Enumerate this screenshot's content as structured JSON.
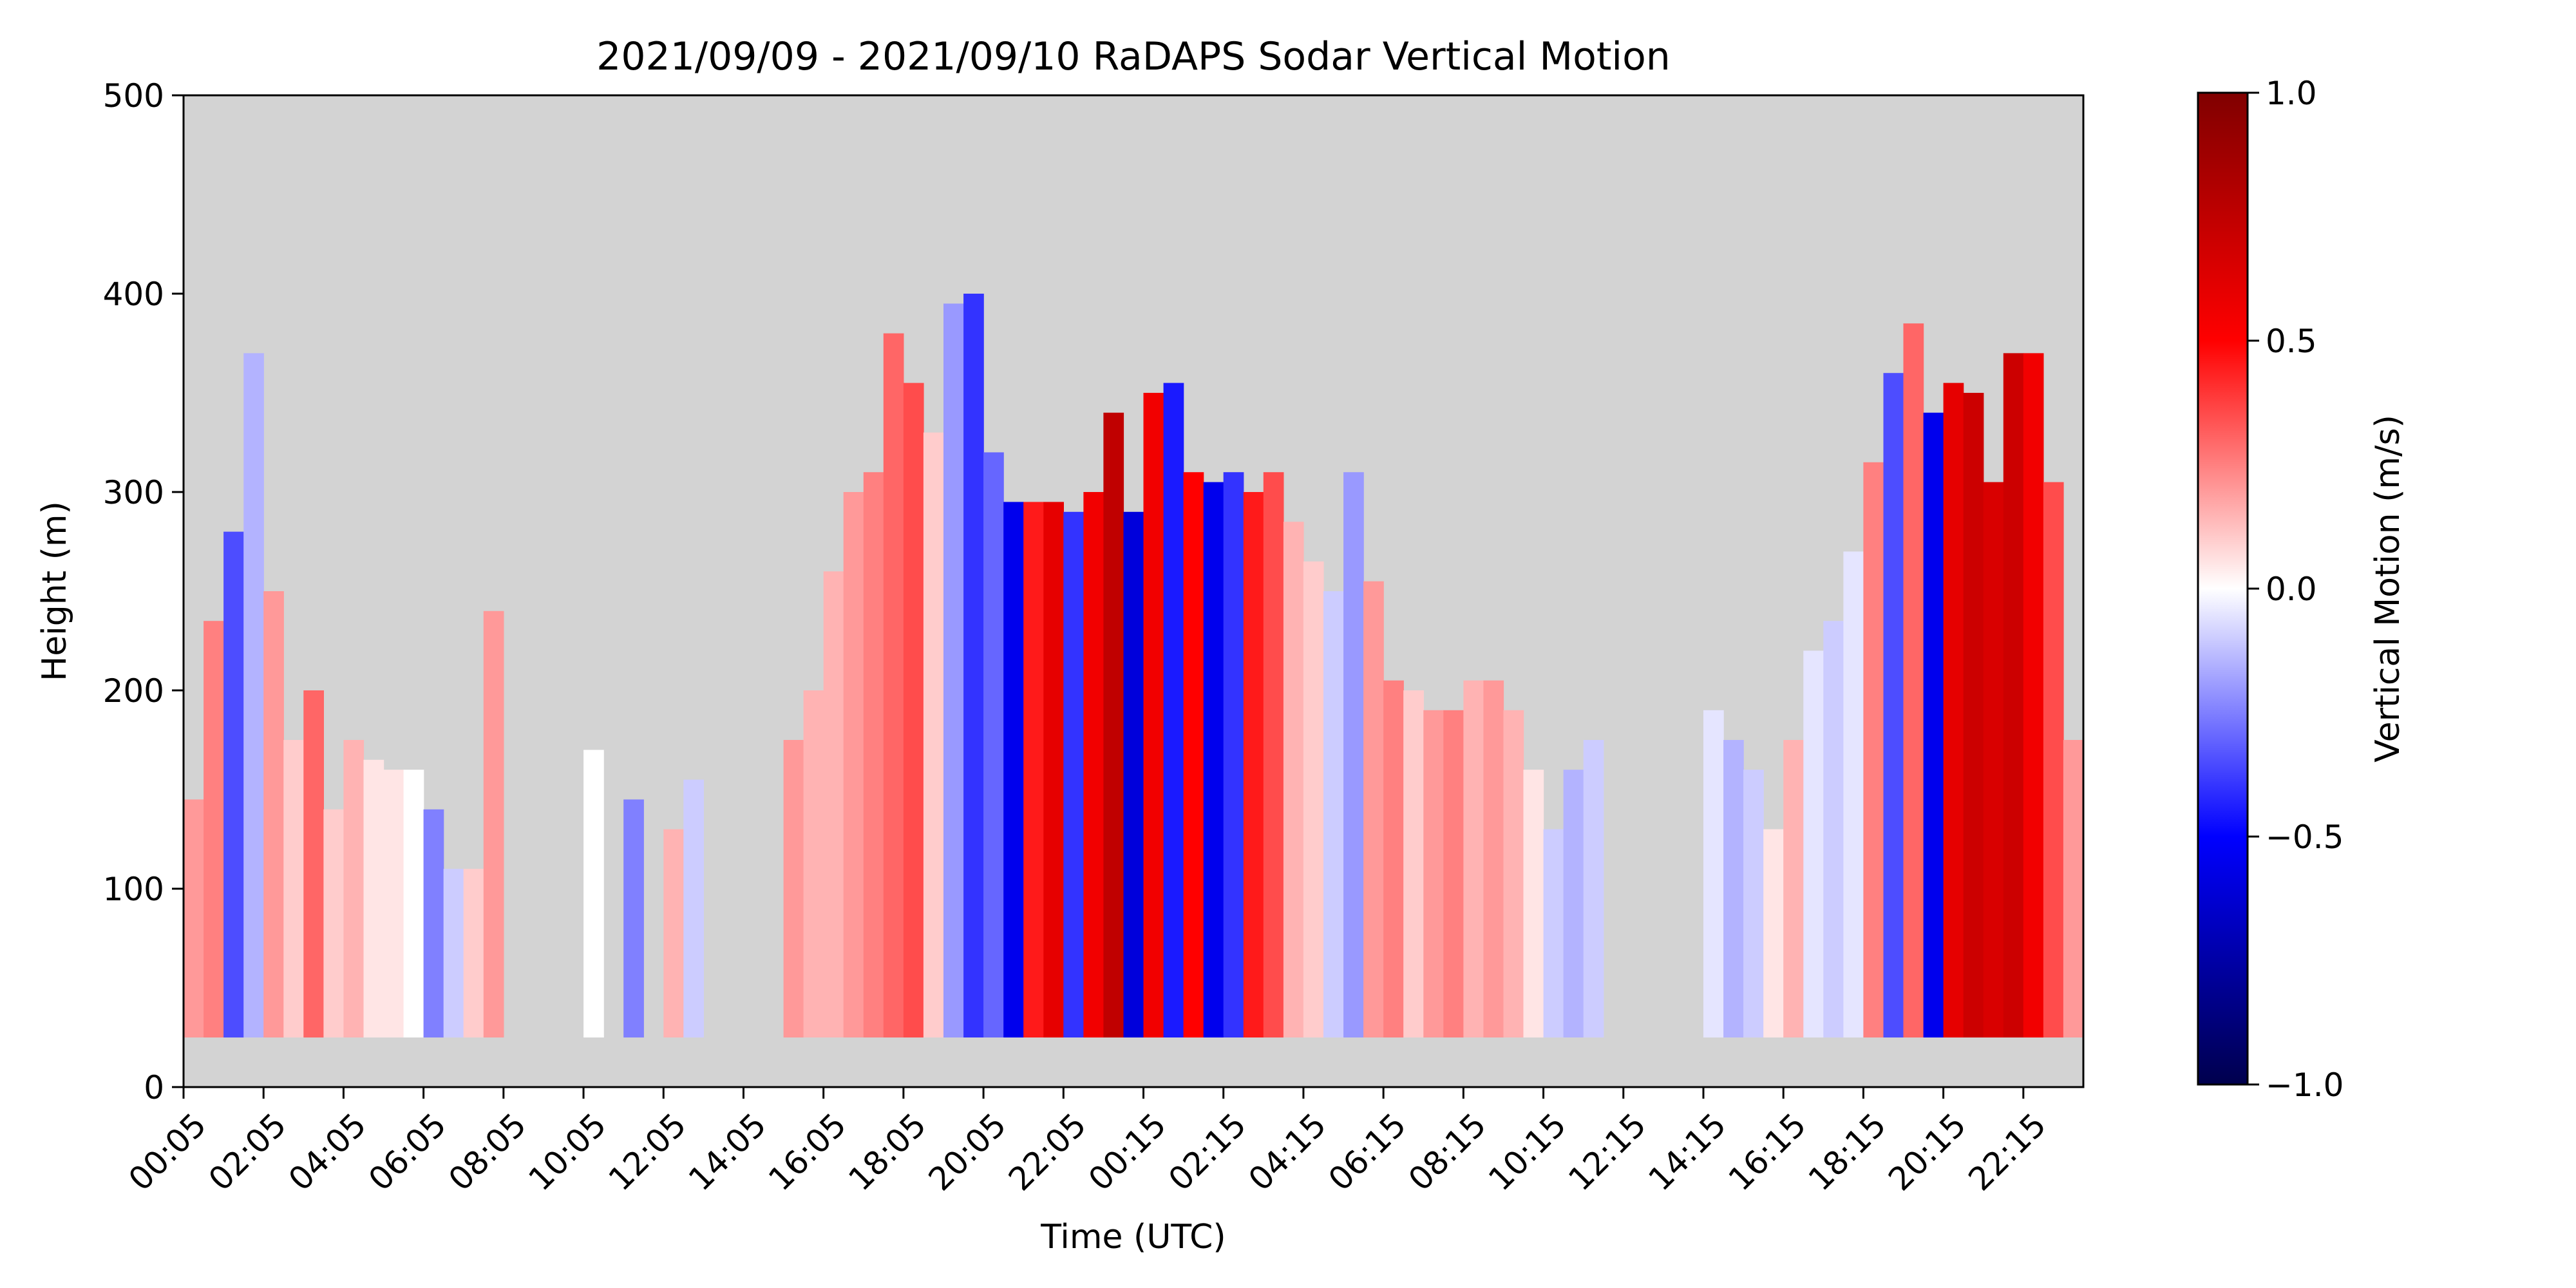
{
  "chart_data": {
    "type": "heatmap",
    "title": "2021/09/09 - 2021/09/10 RaDAPS Sodar Vertical Motion",
    "xlabel": "Time (UTC)",
    "ylabel": "Height (m)",
    "x_tick_labels": [
      "00:05",
      "02:05",
      "04:05",
      "06:05",
      "08:05",
      "10:05",
      "12:05",
      "14:05",
      "16:05",
      "18:05",
      "20:05",
      "22:05",
      "00:15",
      "02:15",
      "04:15",
      "06:15",
      "08:15",
      "10:15",
      "12:15",
      "14:15",
      "16:15",
      "18:15",
      "20:15",
      "22:15"
    ],
    "x_tick_step_hours": 2,
    "x_range_hours": [
      0,
      47.5
    ],
    "y_ticks": [
      0,
      100,
      200,
      300,
      400,
      500
    ],
    "ylim": [
      0,
      500
    ],
    "missing_color": "#d3d3d3",
    "min_height": 25,
    "colorbar": {
      "label": "Vertical Motion (m/s)",
      "ticks": [
        1.0,
        0.5,
        0.0,
        -0.5,
        -1.0
      ],
      "tick_labels": [
        "1.0",
        "0.5",
        "0.0",
        "−0.5",
        "−1.0"
      ],
      "range": [
        -1.0,
        1.0
      ],
      "colormap": "seismic",
      "colors": [
        "#00004d",
        "#0000ff",
        "#ffffff",
        "#ff0000",
        "#800000"
      ]
    },
    "data_columns": [
      {
        "t": 0.0,
        "top": 145,
        "v": 0.2
      },
      {
        "t": 0.5,
        "top": 235,
        "v": 0.25
      },
      {
        "t": 1.0,
        "top": 280,
        "v": -0.35
      },
      {
        "t": 1.5,
        "top": 370,
        "v": -0.15
      },
      {
        "t": 2.0,
        "top": 250,
        "v": 0.2
      },
      {
        "t": 2.5,
        "top": 175,
        "v": 0.1
      },
      {
        "t": 3.0,
        "top": 200,
        "v": 0.3
      },
      {
        "t": 3.5,
        "top": 140,
        "v": 0.1
      },
      {
        "t": 4.0,
        "top": 175,
        "v": 0.15
      },
      {
        "t": 4.5,
        "top": 165,
        "v": 0.05
      },
      {
        "t": 5.0,
        "top": 160,
        "v": 0.05
      },
      {
        "t": 5.5,
        "top": 160,
        "v": 0.0
      },
      {
        "t": 6.0,
        "top": 140,
        "v": -0.25
      },
      {
        "t": 6.5,
        "top": 110,
        "v": -0.1
      },
      {
        "t": 7.0,
        "top": 110,
        "v": 0.1
      },
      {
        "t": 7.5,
        "top": 240,
        "v": 0.2
      },
      {
        "t": 8.0,
        "top": 0,
        "v": 0.0
      },
      {
        "t": 8.5,
        "top": 0,
        "v": 0.0
      },
      {
        "t": 9.0,
        "top": 0,
        "v": 0.0
      },
      {
        "t": 9.5,
        "top": 0,
        "v": 0.0
      },
      {
        "t": 10.0,
        "top": 170,
        "v": 0.0
      },
      {
        "t": 10.5,
        "top": 0,
        "v": 0.0
      },
      {
        "t": 11.0,
        "top": 145,
        "v": -0.25
      },
      {
        "t": 11.5,
        "top": 0,
        "v": 0.0
      },
      {
        "t": 12.0,
        "top": 130,
        "v": 0.15
      },
      {
        "t": 12.5,
        "top": 155,
        "v": -0.1
      },
      {
        "t": 13.0,
        "top": 0,
        "v": 0.0
      },
      {
        "t": 13.5,
        "top": 0,
        "v": 0.0
      },
      {
        "t": 14.0,
        "top": 0,
        "v": 0.0
      },
      {
        "t": 14.5,
        "top": 0,
        "v": 0.0
      },
      {
        "t": 15.0,
        "top": 175,
        "v": 0.2
      },
      {
        "t": 15.5,
        "top": 200,
        "v": 0.15
      },
      {
        "t": 16.0,
        "top": 260,
        "v": 0.15
      },
      {
        "t": 16.5,
        "top": 300,
        "v": 0.2
      },
      {
        "t": 17.0,
        "top": 310,
        "v": 0.25
      },
      {
        "t": 17.5,
        "top": 380,
        "v": 0.3
      },
      {
        "t": 18.0,
        "top": 355,
        "v": 0.35
      },
      {
        "t": 18.5,
        "top": 330,
        "v": 0.1
      },
      {
        "t": 19.0,
        "top": 395,
        "v": -0.2
      },
      {
        "t": 19.5,
        "top": 400,
        "v": -0.4
      },
      {
        "t": 20.0,
        "top": 320,
        "v": -0.3
      },
      {
        "t": 20.5,
        "top": 295,
        "v": -0.55
      },
      {
        "t": 21.0,
        "top": 295,
        "v": 0.45
      },
      {
        "t": 21.5,
        "top": 295,
        "v": 0.6
      },
      {
        "t": 22.0,
        "top": 290,
        "v": -0.4
      },
      {
        "t": 22.5,
        "top": 300,
        "v": 0.55
      },
      {
        "t": 23.0,
        "top": 340,
        "v": 0.75
      },
      {
        "t": 23.5,
        "top": 290,
        "v": -0.6
      },
      {
        "t": 24.0,
        "top": 350,
        "v": 0.55
      },
      {
        "t": 24.5,
        "top": 355,
        "v": -0.45
      },
      {
        "t": 25.0,
        "top": 310,
        "v": 0.5
      },
      {
        "t": 25.5,
        "top": 305,
        "v": -0.55
      },
      {
        "t": 26.0,
        "top": 310,
        "v": -0.4
      },
      {
        "t": 26.5,
        "top": 300,
        "v": 0.45
      },
      {
        "t": 27.0,
        "top": 310,
        "v": 0.35
      },
      {
        "t": 27.5,
        "top": 285,
        "v": 0.15
      },
      {
        "t": 28.0,
        "top": 265,
        "v": 0.1
      },
      {
        "t": 28.5,
        "top": 250,
        "v": -0.1
      },
      {
        "t": 29.0,
        "top": 310,
        "v": -0.2
      },
      {
        "t": 29.5,
        "top": 255,
        "v": 0.2
      },
      {
        "t": 30.0,
        "top": 205,
        "v": 0.25
      },
      {
        "t": 30.5,
        "top": 200,
        "v": 0.1
      },
      {
        "t": 31.0,
        "top": 190,
        "v": 0.2
      },
      {
        "t": 31.5,
        "top": 190,
        "v": 0.25
      },
      {
        "t": 32.0,
        "top": 205,
        "v": 0.15
      },
      {
        "t": 32.5,
        "top": 205,
        "v": 0.2
      },
      {
        "t": 33.0,
        "top": 190,
        "v": 0.15
      },
      {
        "t": 33.5,
        "top": 160,
        "v": 0.05
      },
      {
        "t": 34.0,
        "top": 130,
        "v": -0.1
      },
      {
        "t": 34.5,
        "top": 160,
        "v": -0.15
      },
      {
        "t": 35.0,
        "top": 175,
        "v": -0.1
      },
      {
        "t": 35.5,
        "top": 0,
        "v": 0.0
      },
      {
        "t": 36.0,
        "top": 0,
        "v": 0.0
      },
      {
        "t": 36.5,
        "top": 0,
        "v": 0.0
      },
      {
        "t": 37.0,
        "top": 0,
        "v": 0.0
      },
      {
        "t": 37.5,
        "top": 0,
        "v": 0.0
      },
      {
        "t": 38.0,
        "top": 190,
        "v": -0.05
      },
      {
        "t": 38.5,
        "top": 175,
        "v": -0.15
      },
      {
        "t": 39.0,
        "top": 160,
        "v": -0.1
      },
      {
        "t": 39.5,
        "top": 130,
        "v": 0.05
      },
      {
        "t": 40.0,
        "top": 175,
        "v": 0.15
      },
      {
        "t": 40.5,
        "top": 220,
        "v": -0.05
      },
      {
        "t": 41.0,
        "top": 235,
        "v": -0.1
      },
      {
        "t": 41.5,
        "top": 270,
        "v": -0.05
      },
      {
        "t": 42.0,
        "top": 315,
        "v": 0.25
      },
      {
        "t": 42.5,
        "top": 360,
        "v": -0.35
      },
      {
        "t": 43.0,
        "top": 385,
        "v": 0.3
      },
      {
        "t": 43.5,
        "top": 340,
        "v": -0.55
      },
      {
        "t": 44.0,
        "top": 355,
        "v": 0.6
      },
      {
        "t": 44.5,
        "top": 350,
        "v": 0.7
      },
      {
        "t": 45.0,
        "top": 305,
        "v": 0.65
      },
      {
        "t": 45.5,
        "top": 370,
        "v": 0.7
      },
      {
        "t": 46.0,
        "top": 370,
        "v": 0.55
      },
      {
        "t": 46.5,
        "top": 305,
        "v": 0.35
      },
      {
        "t": 47.0,
        "top": 175,
        "v": 0.2
      }
    ]
  }
}
